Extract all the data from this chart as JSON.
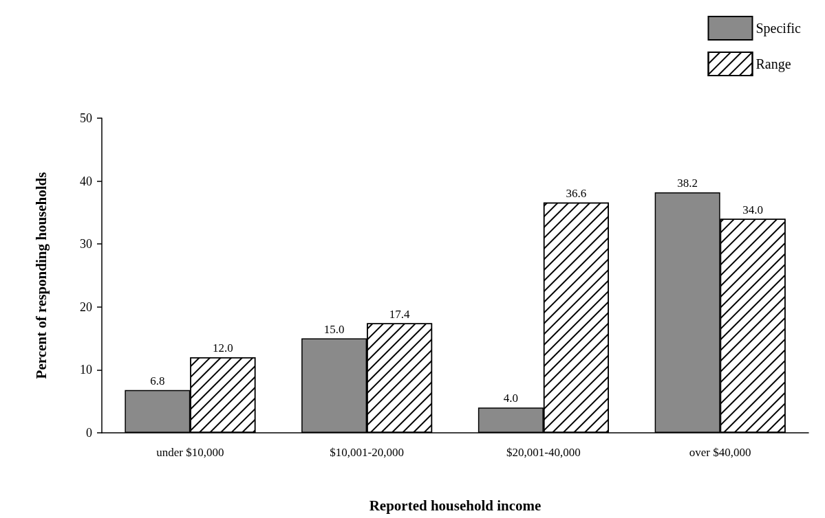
{
  "chart_data": {
    "type": "bar",
    "xlabel": "Reported household income",
    "ylabel": "Percent of responding households",
    "categories": [
      "under $10,000",
      "$10,001-20,000",
      "$20,001-40,000",
      "over $40,000"
    ],
    "series": [
      {
        "name": "Specific",
        "color": "#8a8a8a",
        "values": [
          6.8,
          15.0,
          4.0,
          38.2
        ],
        "value_labels": [
          "6.8",
          "15.0",
          "4.0",
          "38.2"
        ]
      },
      {
        "name": "Range",
        "color": "#ffffff",
        "values": [
          12.0,
          17.4,
          36.6,
          34.0
        ],
        "value_labels": [
          "12.0",
          "17.4",
          "36.6",
          "34.0"
        ]
      }
    ],
    "ylim": [
      0,
      50
    ],
    "yticks": [
      0,
      10,
      20,
      30,
      40,
      50
    ],
    "grid": false,
    "legend": "top right"
  }
}
